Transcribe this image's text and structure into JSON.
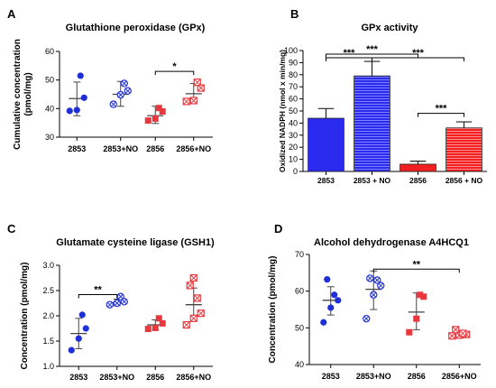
{
  "chart_data": [
    {
      "panel": "A",
      "type": "scatter",
      "title": "Glutathione peroxidase (GPx)",
      "ylabel": "Cumulative concentration (pmol/mg)",
      "ylabel_lines": [
        "Cumulative concentration",
        "(pmol/mg)"
      ],
      "categories": [
        "2853",
        "2853+NO",
        "2856",
        "2856+NO"
      ],
      "ylim": [
        30,
        60
      ],
      "yticks": [
        "30",
        "40",
        "50",
        "60"
      ],
      "groups": [
        {
          "points": [
            39.2,
            39.5,
            43.8,
            51.5
          ],
          "mean": 43.5,
          "sd_low": 37.5,
          "sd_high": 49.3,
          "color": "#1f2fd6",
          "fill": "solid"
        },
        {
          "points": [
            41.5,
            44.8,
            46.2,
            48.8
          ],
          "mean": 45.0,
          "sd_low": 40.8,
          "sd_high": 49.5,
          "color": "#1f2fd6",
          "fill": "cross"
        },
        {
          "points": [
            35.8,
            36.5,
            39.0,
            40.2
          ],
          "mean": 37.5,
          "sd_low": 34.8,
          "sd_high": 40.8,
          "color": "#e8383d",
          "fill": "solid"
        },
        {
          "points": [
            42.5,
            42.8,
            47.2,
            49.2
          ],
          "mean": 45.2,
          "sd_low": 41.8,
          "sd_high": 48.8,
          "color": "#e8383d",
          "fill": "cross"
        }
      ],
      "significance": [
        {
          "from": 2,
          "to": 3,
          "label": "*",
          "y": 53
        }
      ]
    },
    {
      "panel": "B",
      "type": "bar",
      "title": "GPx activity",
      "ylabel": "Oxidized NADPH (nmol x min/mg)",
      "categories": [
        "2853",
        "2853 + NO",
        "2856",
        "2856 + NO"
      ],
      "ylim": [
        0,
        100
      ],
      "yticks": [
        "0",
        "10",
        "20",
        "30",
        "40",
        "50",
        "60",
        "70",
        "80",
        "90",
        "100"
      ],
      "values": [
        44,
        79,
        6,
        36
      ],
      "errors": [
        8,
        12,
        2.5,
        5
      ],
      "colors": [
        "#2b2bf0",
        "#2b2bf0",
        "#f22020",
        "#f22020"
      ],
      "hatched": [
        false,
        true,
        false,
        true
      ],
      "significance": [
        {
          "from": 0,
          "to": 2,
          "label": "***",
          "y": 97
        },
        {
          "from": 0,
          "to": 1,
          "label": "***",
          "y": 94
        },
        {
          "from": 1,
          "to": 3,
          "label": "***",
          "y": 94
        },
        {
          "from": 2,
          "to": 3,
          "label": "***",
          "y": 48
        }
      ]
    },
    {
      "panel": "C",
      "type": "scatter",
      "title": "Glutamate cysteine ligase (GSH1)",
      "ylabel": "Concentration (pmol/mg)",
      "categories": [
        "2853",
        "2853+NO",
        "2856",
        "2856+NO"
      ],
      "ylim": [
        1.0,
        3.0
      ],
      "yticks": [
        "1.0",
        "1.5",
        "2.0",
        "2.5",
        "3.0"
      ],
      "groups": [
        {
          "points": [
            1.32,
            1.55,
            1.75,
            2.02
          ],
          "mean": 1.65,
          "sd_low": 1.35,
          "sd_high": 1.95,
          "color": "#1f2fd6",
          "fill": "solid"
        },
        {
          "points": [
            2.22,
            2.25,
            2.28,
            2.38
          ],
          "mean": 2.26,
          "sd_low": 2.2,
          "sd_high": 2.33,
          "color": "#1f2fd6",
          "fill": "cross"
        },
        {
          "points": [
            1.74,
            1.76,
            1.85,
            1.95
          ],
          "mean": 1.82,
          "sd_low": 1.72,
          "sd_high": 1.92,
          "color": "#e8383d",
          "fill": "solid"
        },
        {
          "points": [
            1.82,
            1.95,
            2.05,
            2.35,
            2.6,
            2.75
          ],
          "mean": 2.22,
          "sd_low": 1.9,
          "sd_high": 2.55,
          "color": "#e8383d",
          "fill": "cross"
        }
      ],
      "significance": [
        {
          "from": 0,
          "to": 1,
          "label": "**",
          "y": 2.42
        }
      ]
    },
    {
      "panel": "D",
      "type": "scatter",
      "title": "Alcohol dehydrogenase A4HCQ1",
      "ylabel": "Concentration (pmol/mg)",
      "categories": [
        "2853",
        "2853+NO",
        "2856",
        "2856+NO"
      ],
      "ylim": [
        40,
        70
      ],
      "yticks": [
        "40",
        "50",
        "60",
        "70"
      ],
      "groups": [
        {
          "points": [
            51.5,
            55.5,
            57.5,
            59.0,
            63.2
          ],
          "mean": 57.5,
          "sd_low": 53.5,
          "sd_high": 61.2,
          "color": "#1f2fd6",
          "fill": "solid"
        },
        {
          "points": [
            52.5,
            59.0,
            61.5,
            63.0,
            63.5
          ],
          "mean": 60.5,
          "sd_low": 55.0,
          "sd_high": 65.5,
          "color": "#1f2fd6",
          "fill": "cross"
        },
        {
          "points": [
            48.8,
            52.5,
            58.5,
            59.0
          ],
          "mean": 54.3,
          "sd_low": 49.5,
          "sd_high": 59.5,
          "color": "#e8383d",
          "fill": "solid"
        },
        {
          "points": [
            47.8,
            48.0,
            48.2,
            48.5,
            49.5
          ],
          "mean": 48.4,
          "sd_low": 47.8,
          "sd_high": 49.2,
          "color": "#e8383d",
          "fill": "cross"
        }
      ],
      "significance": [
        {
          "from": 1,
          "to": 3,
          "label": "**",
          "y": 66
        }
      ]
    }
  ]
}
